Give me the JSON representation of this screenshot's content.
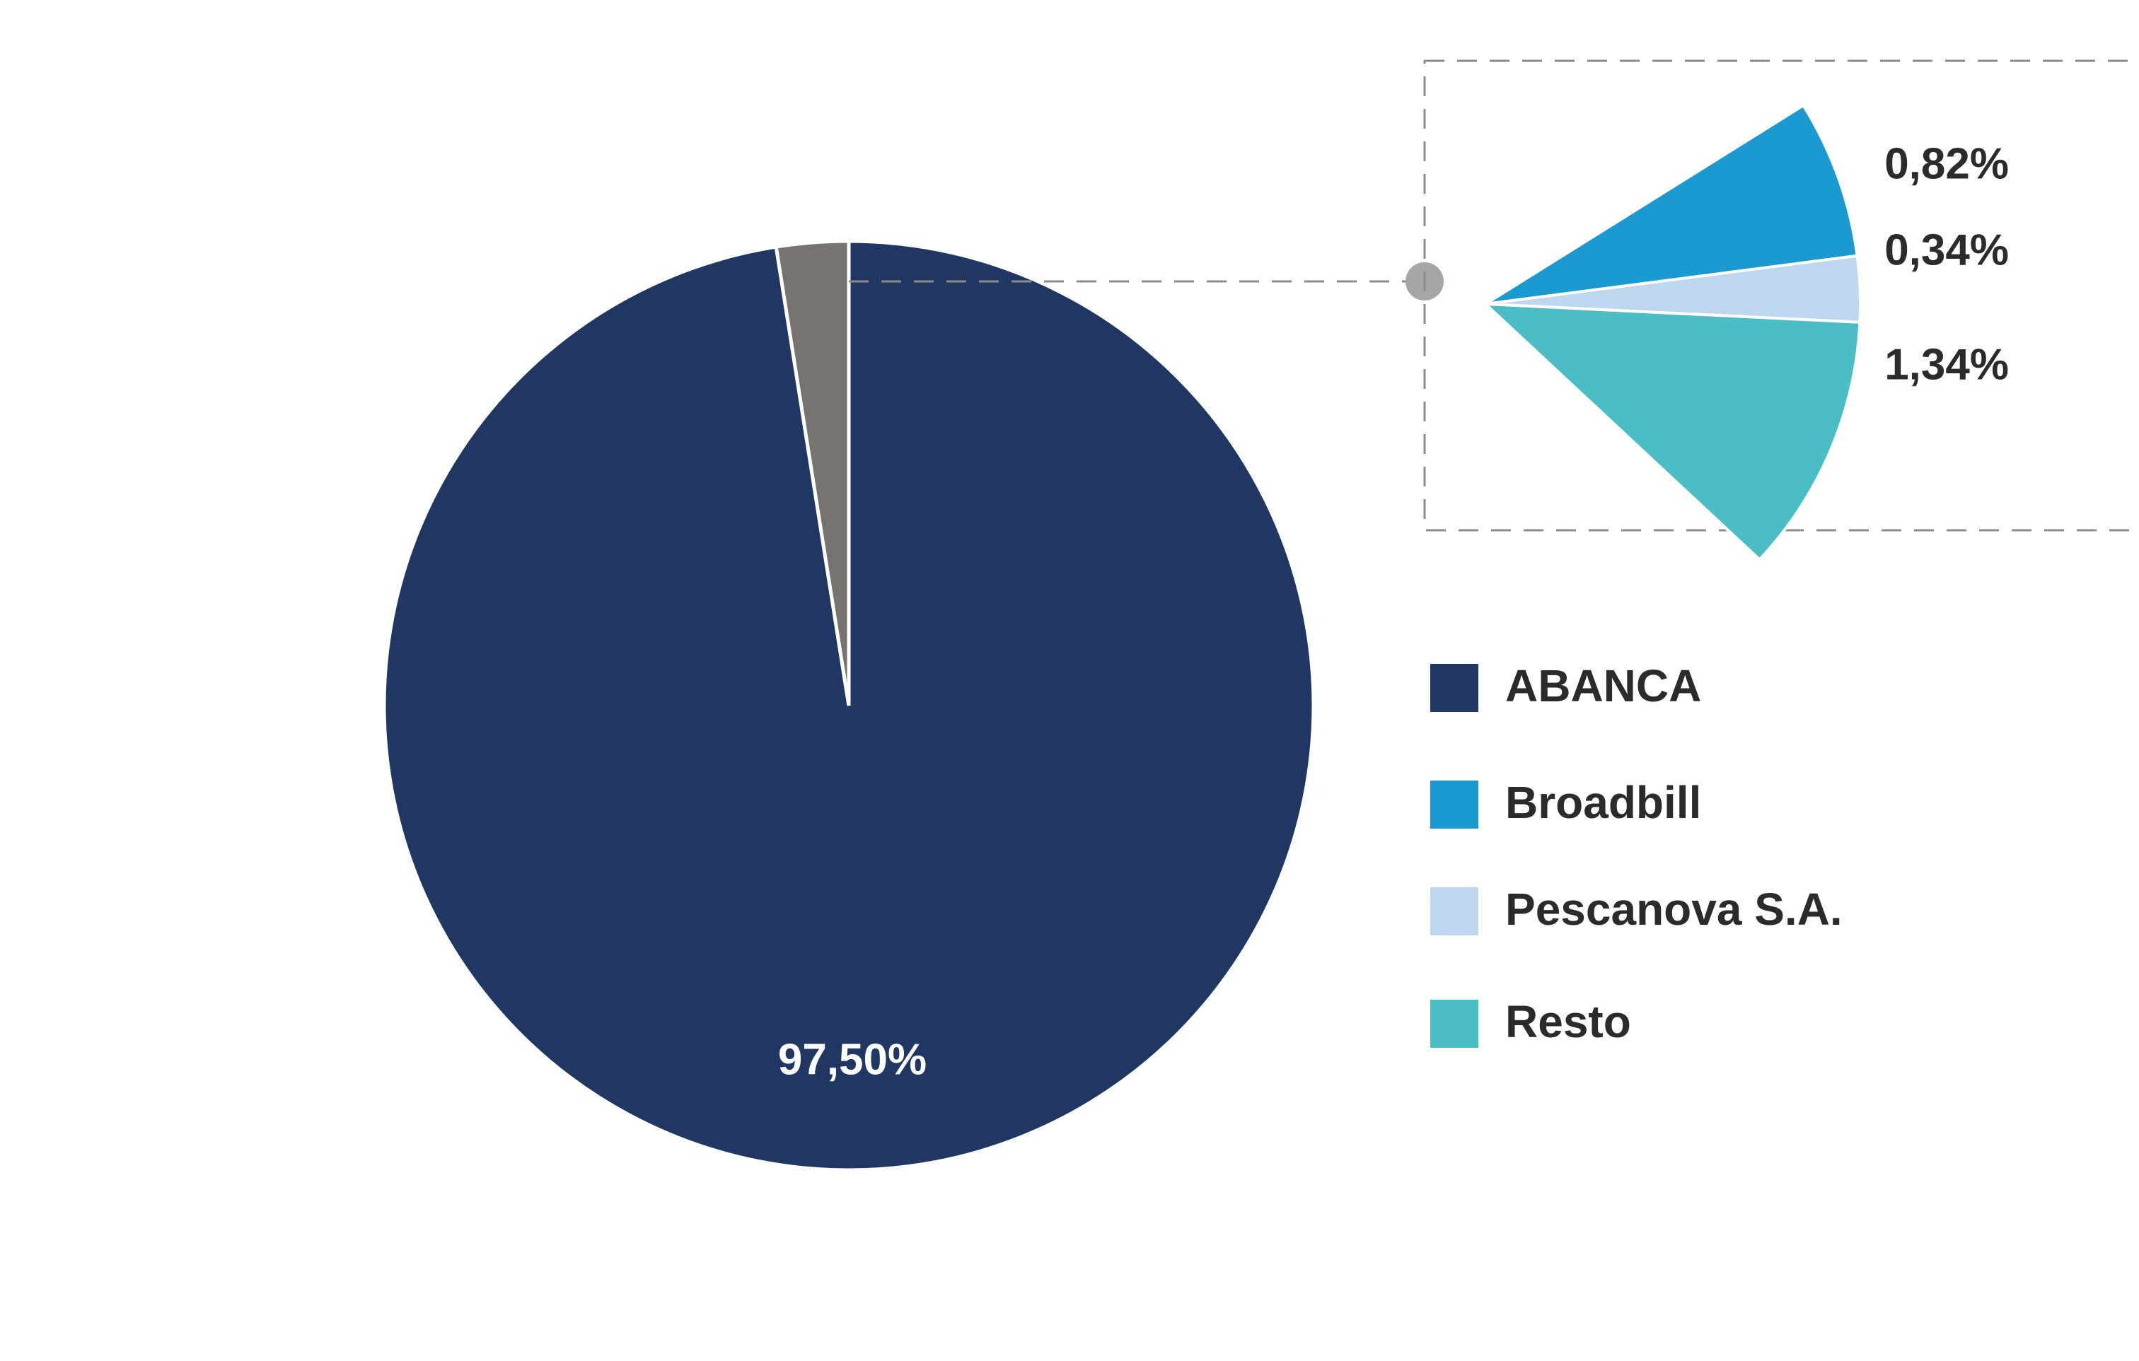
{
  "chart_data": {
    "type": "pie",
    "title": "",
    "slices": [
      {
        "name": "ABANCA",
        "value": 97.5,
        "label": "97,50%",
        "color": "#1f3762"
      },
      {
        "name": "Broadbill",
        "value": 0.82,
        "label": "0,82%",
        "color": "#1a9ad1"
      },
      {
        "name": "Pescanova S.A.",
        "value": 0.34,
        "label": "0,34%",
        "color": "#bdd7ee"
      },
      {
        "name": "Resto",
        "value": 1.34,
        "label": "1,34%",
        "color": "#4bbdc4"
      }
    ],
    "aggregate_slice_color": "#767371",
    "legend_placement": "right",
    "grid": false
  },
  "colors": {
    "label_dark": "#2b2b2b",
    "label_light": "#ffffff",
    "dashes": "#8c8c8c",
    "connector_dot": "#a6a6a6"
  }
}
